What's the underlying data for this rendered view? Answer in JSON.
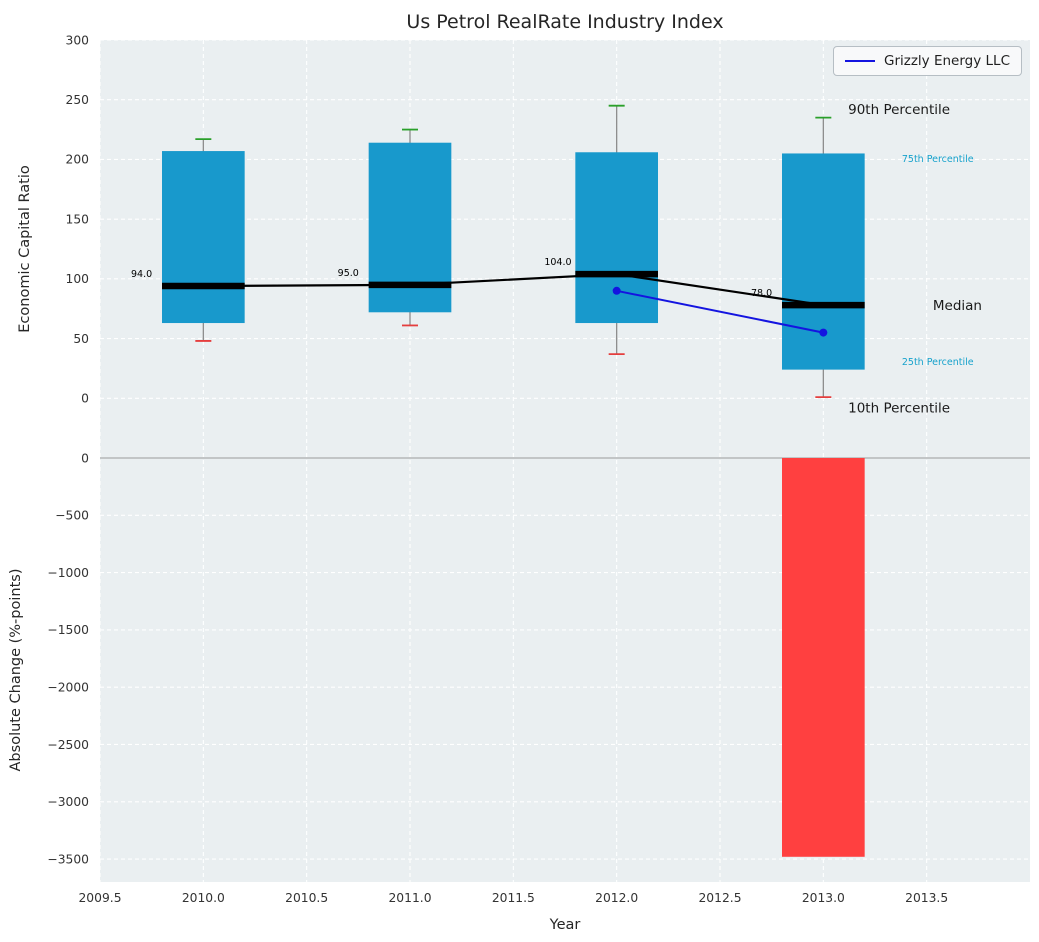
{
  "figure": {
    "title": "Us Petrol RealRate Industry Index",
    "xlabel": "Year",
    "top_ylabel": "Economic Capital Ratio",
    "bottom_ylabel": "Absolute Change (%-points)"
  },
  "legend": {
    "label": "Grizzly Energy LLC"
  },
  "colors": {
    "panel_bg": "#eaeff1",
    "grid": "#ffffff",
    "zero_line": "#9b9b9b",
    "box_fill": "#1899cc",
    "whisker": "#8c8c8c",
    "cap_90th": "#2aa02a",
    "cap_10th": "#e53e3e",
    "median_line": "#000000",
    "company_line": "#1414e0",
    "change_bar": "#ff4040",
    "tick_text": "#333333",
    "dark_text": "#1a1a1a",
    "accent_text": "#17a2cc"
  },
  "chart_data": {
    "type": "boxplot+bar",
    "title": "Us Petrol RealRate Industry Index",
    "xlabel": "Year",
    "legend_position": "upper right",
    "grid": true,
    "x": {
      "lim": [
        2009.5,
        2014.0
      ],
      "ticks": [
        {
          "value": 2009.5,
          "label": "2009.5"
        },
        {
          "value": 2010.0,
          "label": "2010.0"
        },
        {
          "value": 2010.5,
          "label": "2010.5"
        },
        {
          "value": 2011.0,
          "label": "2011.0"
        },
        {
          "value": 2011.5,
          "label": "2011.5"
        },
        {
          "value": 2012.0,
          "label": "2012.0"
        },
        {
          "value": 2012.5,
          "label": "2012.5"
        },
        {
          "value": 2013.0,
          "label": "2013.0"
        },
        {
          "value": 2013.5,
          "label": "2013.5"
        }
      ]
    },
    "top_panel": {
      "ylabel": "Economic Capital Ratio",
      "ylim": [
        -50,
        300
      ],
      "yticks": [
        {
          "value": 0,
          "label": "0"
        },
        {
          "value": 50,
          "label": "50"
        },
        {
          "value": 100,
          "label": "100"
        },
        {
          "value": 150,
          "label": "150"
        },
        {
          "value": 200,
          "label": "200"
        },
        {
          "value": 250,
          "label": "250"
        },
        {
          "value": 300,
          "label": "300"
        }
      ],
      "box_width_years": 0.4,
      "boxes": [
        {
          "year": 2010,
          "p10": 48,
          "p25": 63,
          "median": 94,
          "p75": 207,
          "p90": 217,
          "median_label": "94.0"
        },
        {
          "year": 2011,
          "p10": 61,
          "p25": 72,
          "median": 95,
          "p75": 214,
          "p90": 225,
          "median_label": "95.0"
        },
        {
          "year": 2012,
          "p10": 37,
          "p25": 63,
          "median": 104,
          "p75": 206,
          "p90": 245,
          "median_label": "104.0"
        },
        {
          "year": 2013,
          "p10": 1,
          "p25": 24,
          "median": 78,
          "p75": 205,
          "p90": 235,
          "median_label": "78.0"
        }
      ],
      "company_series": {
        "name": "Grizzly Energy LLC",
        "points": [
          {
            "x": 2012,
            "y": 90
          },
          {
            "x": 2013,
            "y": 55
          }
        ]
      },
      "annotations": [
        {
          "text": "90th Percentile",
          "x": 2013.12,
          "y": 238,
          "color": "#1a1a1a",
          "size": 13.5
        },
        {
          "text": "75th Percentile",
          "x": 2013.38,
          "y": 198,
          "color": "#17a2cc",
          "size": 9.5
        },
        {
          "text": "Median",
          "x": 2013.53,
          "y": 74,
          "color": "#1a1a1a",
          "size": 13.5
        },
        {
          "text": "25th Percentile",
          "x": 2013.38,
          "y": 28,
          "color": "#17a2cc",
          "size": 9.5
        },
        {
          "text": "10th Percentile",
          "x": 2013.12,
          "y": -12,
          "color": "#1a1a1a",
          "size": 13.5
        }
      ]
    },
    "bottom_panel": {
      "ylabel": "Absolute Change (%-points)",
      "ylim": [
        -3700,
        0
      ],
      "yticks": [
        {
          "value": 0,
          "label": "0"
        },
        {
          "value": -500,
          "label": "−500"
        },
        {
          "value": -1000,
          "label": "−1000"
        },
        {
          "value": -1500,
          "label": "−1500"
        },
        {
          "value": -2000,
          "label": "−2000"
        },
        {
          "value": -2500,
          "label": "−2500"
        },
        {
          "value": -3000,
          "label": "−3000"
        },
        {
          "value": -3500,
          "label": "−3500"
        }
      ],
      "bars": [
        {
          "year": 2013,
          "value": -3480
        }
      ]
    }
  }
}
